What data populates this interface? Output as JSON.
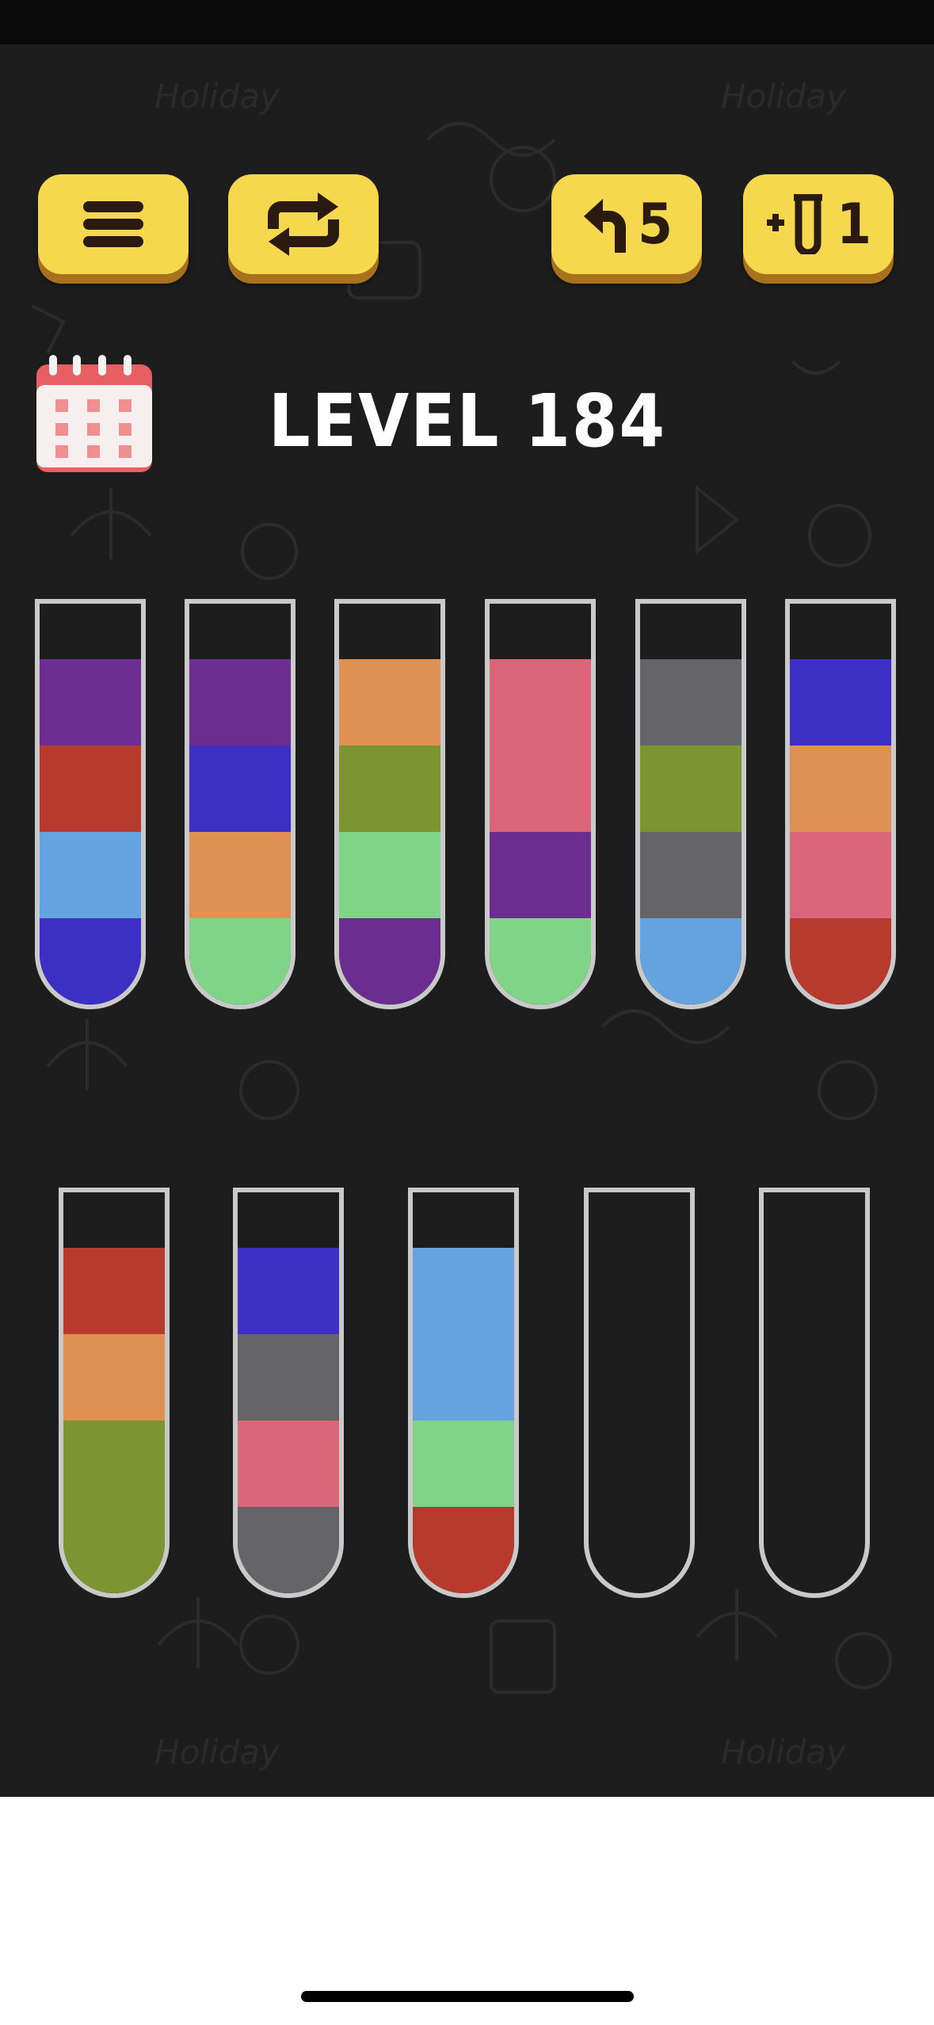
{
  "game": {
    "level_title": "LEVEL 184",
    "undo_count": "5",
    "extra_tube_count": "1"
  },
  "icons": {
    "menu": "hamburger-menu-icon",
    "restart": "restart-arrows-icon",
    "undo": "undo-arrow-icon",
    "extra_tube": "add-tube-icon",
    "calendar": "calendar-icon"
  },
  "colors": {
    "background": "#1d1d1d",
    "button": "#f5d84e",
    "button_shadow": "#a8711e",
    "tube_border": "#c9c9c9",
    "purple": "#6b2d90",
    "red": "#b83a2e",
    "light_blue": "#65a2e0",
    "blue": "#3b2fc4",
    "orange": "#df9053",
    "light_green": "#7fd487",
    "olive": "#7d9530",
    "pink": "#dc6679",
    "gray": "#656567"
  },
  "tubes": [
    {
      "layers_top_to_bottom": [
        "purple",
        "red",
        "light_blue",
        "blue"
      ]
    },
    {
      "layers_top_to_bottom": [
        "purple",
        "blue",
        "orange",
        "light_green"
      ]
    },
    {
      "layers_top_to_bottom": [
        "orange",
        "olive",
        "light_green",
        "purple"
      ]
    },
    {
      "layers_top_to_bottom": [
        "pink",
        "pink",
        "purple",
        "light_green"
      ]
    },
    {
      "layers_top_to_bottom": [
        "gray",
        "olive",
        "gray",
        "light_blue"
      ]
    },
    {
      "layers_top_to_bottom": [
        "blue",
        "orange",
        "pink",
        "red"
      ]
    },
    {
      "layers_top_to_bottom": [
        "red",
        "orange",
        "olive",
        "olive"
      ]
    },
    {
      "layers_top_to_bottom": [
        "blue",
        "gray",
        "pink",
        "gray"
      ]
    },
    {
      "layers_top_to_bottom": [
        "light_blue",
        "light_blue",
        "light_green",
        "red"
      ]
    },
    {
      "layers_top_to_bottom": []
    },
    {
      "layers_top_to_bottom": []
    }
  ]
}
